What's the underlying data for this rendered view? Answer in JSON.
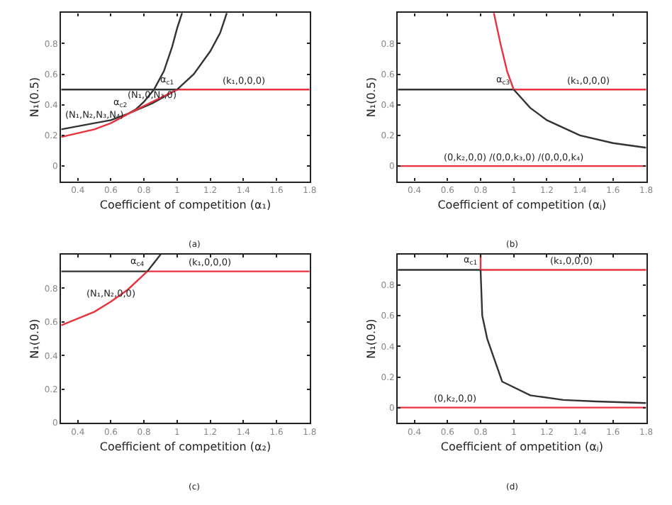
{
  "chart_data": [
    {
      "type": "line",
      "xlabel": "Coefficient of competition (α₁)",
      "ylabel": "N₁(0.5)",
      "xlim": [
        0.3,
        1.8
      ],
      "ylim": [
        -0.1,
        1.0
      ],
      "xticks": [
        0.4,
        0.6,
        0.8,
        1,
        1.2,
        1.4,
        1.6,
        1.8
      ],
      "yticks": [
        0,
        0.2,
        0.4,
        0.6,
        0.8
      ],
      "series": [
        {
          "color": "#333333",
          "x": [
            0.3,
            1.0
          ],
          "values": [
            0.5,
            0.5
          ]
        },
        {
          "color": "#e8333f",
          "x": [
            1.0,
            1.8
          ],
          "values": [
            0.5,
            0.5
          ]
        },
        {
          "color": "#333333",
          "x": [
            0.3,
            0.5,
            0.6,
            0.7,
            0.75,
            0.8,
            0.86,
            0.92,
            0.97,
            1.0,
            1.03
          ],
          "values": [
            0.24,
            0.28,
            0.3,
            0.34,
            0.37,
            0.42,
            0.5,
            0.62,
            0.78,
            0.9,
            1.0
          ]
        },
        {
          "color": "#333333",
          "x": [
            0.72,
            0.85,
            1.0,
            1.1,
            1.2,
            1.26,
            1.3
          ],
          "values": [
            0.35,
            0.41,
            0.5,
            0.6,
            0.75,
            0.87,
            1.0
          ]
        },
        {
          "color": "#e8333f",
          "x": [
            0.3,
            0.5,
            0.6,
            0.72,
            0.85,
            1.0
          ],
          "values": [
            0.19,
            0.24,
            0.28,
            0.35,
            0.42,
            0.5
          ]
        }
      ],
      "annotations": [
        {
          "text": "α$_{c2}$",
          "x": 0.72,
          "y": 0.35
        },
        {
          "text": "α$_{c1}$",
          "x": 1.0,
          "y": 0.5
        },
        {
          "text": "(k₁,0,0,0)",
          "x": 1.4,
          "y": 0.5
        },
        {
          "text": "(N₁,N₂,N₃,N₄)",
          "x": 0.5,
          "y": 0.28
        },
        {
          "text": "(N₁,0,N₃,0)",
          "x": 0.85,
          "y": 0.41
        },
        "(a)"
      ]
    },
    {
      "type": "line",
      "xlabel": "Coefficient of competition (αⱼ)",
      "ylabel": "N₁(0.5)",
      "xlim": [
        0.3,
        1.8
      ],
      "ylim": [
        -0.1,
        1.0
      ],
      "xticks": [
        0.4,
        0.6,
        0.8,
        1,
        1.2,
        1.4,
        1.6,
        1.8
      ],
      "yticks": [
        0,
        0.2,
        0.4,
        0.6,
        0.8
      ],
      "series": [
        {
          "color": "#333333",
          "x": [
            0.3,
            1.0
          ],
          "values": [
            0.5,
            0.5
          ]
        },
        {
          "color": "#e8333f",
          "x": [
            1.0,
            1.8
          ],
          "values": [
            0.5,
            0.5
          ]
        },
        {
          "color": "#e8333f",
          "x": [
            0.3,
            1.8
          ],
          "values": [
            0,
            0
          ]
        },
        {
          "color": "#e8333f",
          "x": [
            0.88,
            0.92,
            0.96,
            1.0
          ],
          "values": [
            1.0,
            0.8,
            0.62,
            0.5
          ]
        },
        {
          "color": "#333333",
          "x": [
            1.0,
            1.1,
            1.2,
            1.4,
            1.6,
            1.8
          ],
          "values": [
            0.5,
            0.38,
            0.3,
            0.2,
            0.15,
            0.12
          ]
        }
      ],
      "annotations": [
        {
          "text": "α$_{c3}$",
          "x": 1.0,
          "y": 0.5
        },
        {
          "text": "(k₁,0,0,0)",
          "x": 1.45,
          "y": 0.5
        },
        {
          "text": "(0,k₂,0,0) /(0,0,k₃,0) /(0,0,0,k₄)",
          "x": 1.0,
          "y": 0
        },
        "(b)"
      ]
    },
    {
      "type": "line",
      "xlabel": "Coefficient of competition (α₂)",
      "ylabel": "N₁(0.9)",
      "xlim": [
        0.3,
        1.8
      ],
      "ylim": [
        0,
        1.0
      ],
      "xticks": [
        0.4,
        0.6,
        0.8,
        1,
        1.2,
        1.4,
        1.6,
        1.8
      ],
      "yticks": [
        0,
        0.2,
        0.4,
        0.6,
        0.8
      ],
      "series": [
        {
          "color": "#333333",
          "x": [
            0.3,
            0.82
          ],
          "values": [
            0.9,
            0.9
          ]
        },
        {
          "color": "#e8333f",
          "x": [
            0.82,
            1.8
          ],
          "values": [
            0.9,
            0.9
          ]
        },
        {
          "color": "#e8333f",
          "x": [
            0.3,
            0.5,
            0.6,
            0.7,
            0.82
          ],
          "values": [
            0.58,
            0.66,
            0.72,
            0.79,
            0.9
          ]
        },
        {
          "color": "#333333",
          "x": [
            0.82,
            0.86,
            0.9
          ],
          "values": [
            0.9,
            0.95,
            1.0
          ]
        }
      ],
      "annotations": [
        {
          "text": "α$_{c4}$",
          "x": 0.82,
          "y": 0.9
        },
        {
          "text": "(k₁,0,0,0)",
          "x": 1.2,
          "y": 0.9
        },
        {
          "text": "(N₁,N₂,0,0)",
          "x": 0.6,
          "y": 0.72
        },
        "(c)"
      ]
    },
    {
      "type": "line",
      "xlabel": "Coefficient of ompetition (αⱼ)",
      "ylabel": "N₁(0.9)",
      "xlim": [
        0.3,
        1.8
      ],
      "ylim": [
        -0.1,
        1.0
      ],
      "xticks": [
        0.4,
        0.6,
        0.8,
        1,
        1.2,
        1.4,
        1.6,
        1.8
      ],
      "yticks": [
        0,
        0.2,
        0.4,
        0.6,
        0.8
      ],
      "series": [
        {
          "color": "#333333",
          "x": [
            0.3,
            0.8
          ],
          "values": [
            0.9,
            0.9
          ]
        },
        {
          "color": "#e8333f",
          "x": [
            0.8,
            0.8
          ],
          "values": [
            0.9,
            1.0
          ]
        },
        {
          "color": "#e8333f",
          "x": [
            0.8,
            1.8
          ],
          "values": [
            0.9,
            0.9
          ]
        },
        {
          "color": "#e8333f",
          "x": [
            0.3,
            1.8
          ],
          "values": [
            0,
            0
          ]
        },
        {
          "color": "#333333",
          "x": [
            0.8,
            0.81,
            0.84,
            0.93,
            1.1,
            1.3,
            1.5,
            1.8
          ],
          "values": [
            0.9,
            0.6,
            0.45,
            0.17,
            0.08,
            0.05,
            0.04,
            0.03
          ]
        }
      ],
      "annotations": [
        {
          "text": "α$_{c1}$",
          "x": 0.8,
          "y": 0.9
        },
        {
          "text": "(k₁,0,0,0)",
          "x": 1.35,
          "y": 0.9
        },
        {
          "text": "(0,k₂,0,0)",
          "x": 0.65,
          "y": 0
        },
        "(d)"
      ]
    }
  ]
}
